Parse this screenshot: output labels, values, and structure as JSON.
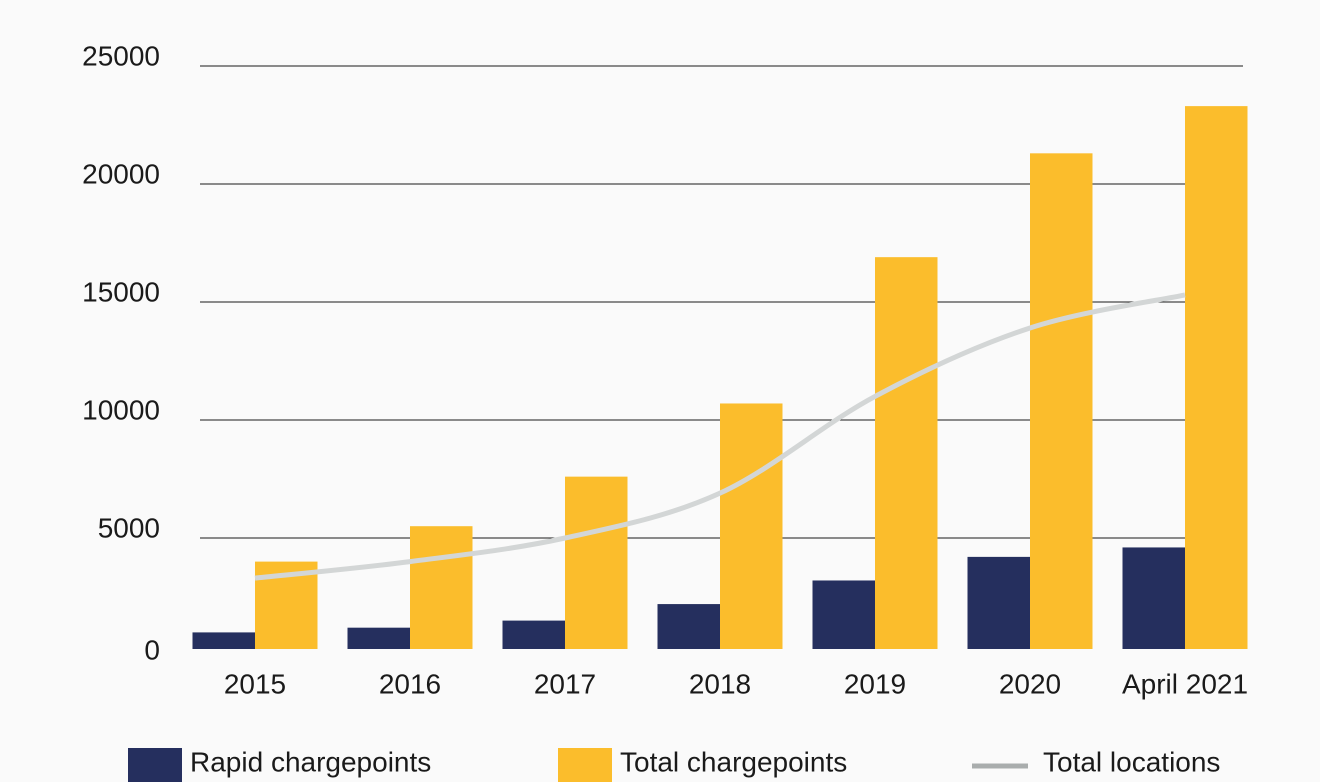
{
  "chart_data": {
    "type": "bar",
    "categories": [
      "2015",
      "2016",
      "2017",
      "2018",
      "2019",
      "2020",
      "April 2021"
    ],
    "series": [
      {
        "name": "Rapid chargepoints",
        "color": "#252f5e",
        "values": [
          1000,
          1200,
          1500,
          2200,
          3200,
          4200,
          4600
        ]
      },
      {
        "name": "Total chargepoints",
        "color": "#fbbd2c",
        "values": [
          4000,
          5500,
          7600,
          10700,
          16900,
          21300,
          23300
        ]
      },
      {
        "name": "Total locations",
        "type": "line",
        "color": "#d3d6d6",
        "values": [
          3300,
          4000,
          5000,
          6900,
          11000,
          13900,
          15300
        ]
      }
    ],
    "ylim": [
      0,
      25000
    ],
    "yticks": [
      0,
      5000,
      10000,
      15000,
      20000,
      25000
    ],
    "grid": true,
    "legend": "bottom"
  }
}
